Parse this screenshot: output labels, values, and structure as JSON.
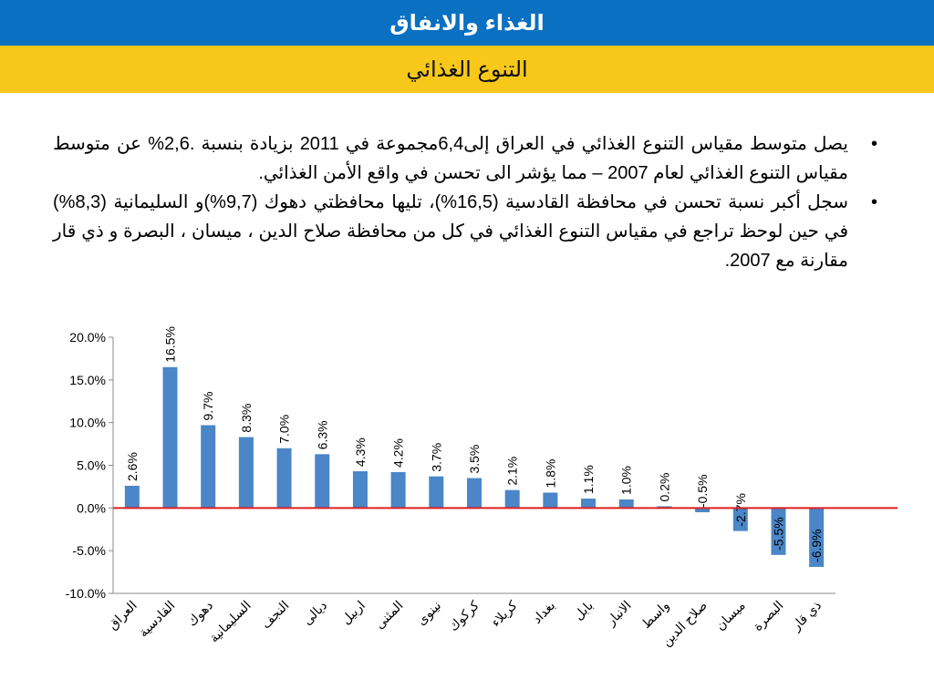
{
  "header": {
    "title": "الغذاء والانفاق",
    "subtitle": "التنوع الغذائي"
  },
  "bullets": [
    "يصل متوسط مقياس التنوع الغذائي في العراق إلى6,4مجموعة في 2011 بزيادة بنسبة .2,6% عن متوسط مقياس التنوع الغذائي لعام 2007 – مما يؤشر الى تحسن في واقع الأمن الغذائي.",
    "سجل أكبر نسبة تحسن في محافظة القادسية (16,5%)، تليها محافظتي دهوك (9,7%)و السليمانية (8,3%) في حين لوحظ تراجع في مقياس التنوع الغذائي في كل من محافظة صلاح الدين ، ميسان ، البصرة و ذي قار مقارنة مع 2007."
  ],
  "bullet_symbol": "•",
  "chart_data": {
    "type": "bar",
    "categories": [
      "العراق",
      "القادسية",
      "دهوك",
      "السليمانية",
      "النجف",
      "ديالى",
      "اربيل",
      "المثنى",
      "نينوى",
      "كركوك",
      "كربلاء",
      "بغداد",
      "بابل",
      "الانبار",
      "واسط",
      "صلاح الدين",
      "ميسان",
      "البصرة",
      "ذي قار"
    ],
    "values": [
      2.6,
      16.5,
      9.7,
      8.3,
      7.0,
      6.3,
      4.3,
      4.2,
      3.7,
      3.5,
      2.1,
      1.8,
      1.1,
      1.0,
      0.2,
      -0.5,
      -2.7,
      -5.5,
      -6.9
    ],
    "value_labels": [
      "2.6%",
      "16.5%",
      "9.7%",
      "8.3%",
      "7.0%",
      "6.3%",
      "4.3%",
      "4.2%",
      "3.7%",
      "3.5%",
      "2.1%",
      "1.8%",
      "1.1%",
      "1.0%",
      "0.2%",
      "-0.5%",
      "-2.7%",
      "-5.5%",
      "-6.9%"
    ],
    "ylim": [
      -10,
      20
    ],
    "yticks": [
      20,
      15,
      10,
      5,
      0,
      -5,
      -10
    ],
    "ytick_labels": [
      "20.0%",
      "15.0%",
      "10.0%",
      "5.0%",
      "0.0%",
      "-5.0%",
      "-10.0%"
    ],
    "bar_color": "#4a86c8",
    "zero_line_color": "#e02020",
    "grid": false
  }
}
